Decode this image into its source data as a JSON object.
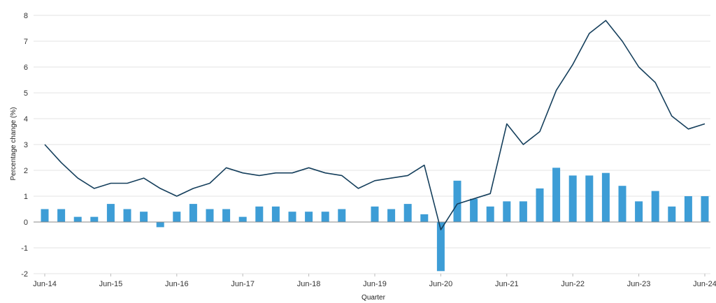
{
  "chart_data": {
    "type": "bar",
    "xlabel": "Quarter",
    "ylabel": "Percentage change (%)",
    "ylim": [
      -2,
      8
    ],
    "yticks": [
      -2,
      -1,
      0,
      1,
      2,
      3,
      4,
      5,
      6,
      7,
      8
    ],
    "grid": true,
    "x": [
      "Jun-14",
      "Sep-14",
      "Dec-14",
      "Mar-15",
      "Jun-15",
      "Sep-15",
      "Dec-15",
      "Mar-16",
      "Jun-16",
      "Sep-16",
      "Dec-16",
      "Mar-17",
      "Jun-17",
      "Sep-17",
      "Dec-17",
      "Mar-18",
      "Jun-18",
      "Sep-18",
      "Dec-18",
      "Mar-19",
      "Jun-19",
      "Sep-19",
      "Dec-19",
      "Mar-20",
      "Jun-20",
      "Sep-20",
      "Dec-20",
      "Mar-21",
      "Jun-21",
      "Sep-21",
      "Dec-21",
      "Mar-22",
      "Jun-22",
      "Sep-22",
      "Dec-22",
      "Mar-23",
      "Jun-23",
      "Sep-23",
      "Dec-23",
      "Mar-24",
      "Jun-24"
    ],
    "xtick_labels": [
      "Jun-14",
      "Jun-15",
      "Jun-16",
      "Jun-17",
      "Jun-18",
      "Jun-19",
      "Jun-20",
      "Jun-21",
      "Jun-22",
      "Jun-23",
      "Jun-24"
    ],
    "series": [
      {
        "type": "bar",
        "color": "#3d9dd6",
        "values": [
          0.5,
          0.5,
          0.2,
          0.2,
          0.7,
          0.5,
          0.4,
          -0.2,
          0.4,
          0.7,
          0.5,
          0.5,
          0.2,
          0.6,
          0.6,
          0.4,
          0.4,
          0.4,
          0.5,
          0.0,
          0.6,
          0.5,
          0.7,
          0.3,
          -1.9,
          1.6,
          0.9,
          0.6,
          0.8,
          0.8,
          1.3,
          2.1,
          1.8,
          1.8,
          1.9,
          1.4,
          0.8,
          1.2,
          0.6,
          1.0,
          1.0
        ]
      },
      {
        "type": "line",
        "color": "#153f5c",
        "values": [
          3.0,
          2.3,
          1.7,
          1.3,
          1.5,
          1.5,
          1.7,
          1.3,
          1.0,
          1.3,
          1.5,
          2.1,
          1.9,
          1.8,
          1.9,
          1.9,
          2.1,
          1.9,
          1.8,
          1.3,
          1.6,
          1.7,
          1.8,
          2.2,
          -0.3,
          0.7,
          0.9,
          1.1,
          3.8,
          3.0,
          3.5,
          5.1,
          6.1,
          7.3,
          7.8,
          7.0,
          6.0,
          5.4,
          4.1,
          3.6,
          3.8
        ]
      }
    ]
  }
}
